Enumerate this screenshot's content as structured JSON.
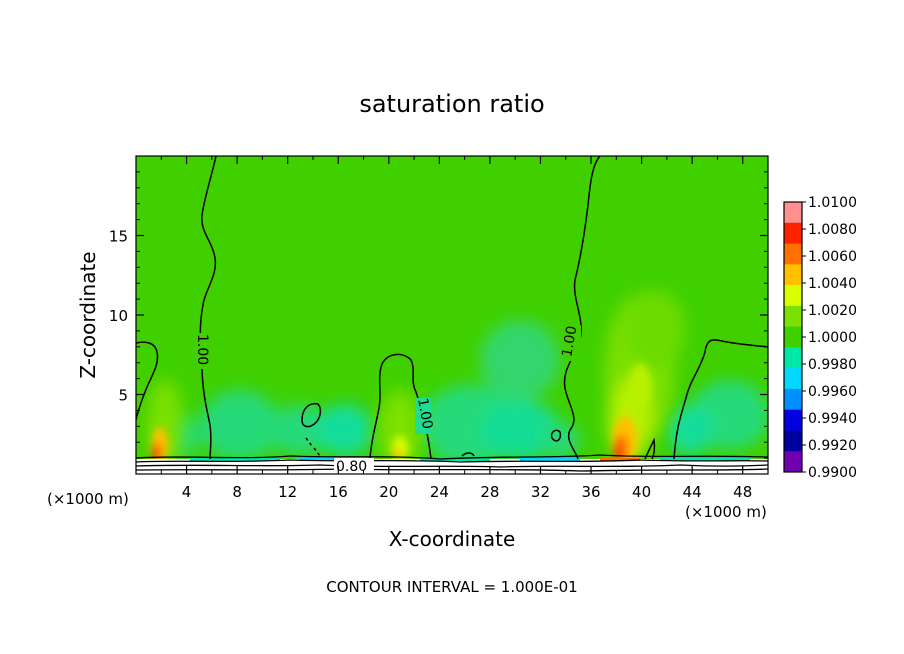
{
  "chart_data": {
    "type": "heatmap",
    "title": "saturation ratio",
    "xlabel": "X-coordinate",
    "ylabel": "Z-coordinate",
    "x_unit": "(×1000 m)",
    "x_unit_right": "(×1000 m)",
    "xlim": [
      0,
      50
    ],
    "ylim": [
      0,
      20
    ],
    "x_ticks": [
      4,
      8,
      12,
      16,
      20,
      24,
      28,
      32,
      36,
      40,
      44,
      48
    ],
    "x_tick_labels": [
      "4",
      "8",
      "12",
      "16",
      "20",
      "24",
      "28",
      "32",
      "36",
      "40",
      "44",
      "48"
    ],
    "y_ticks": [
      5,
      10,
      15
    ],
    "y_tick_labels": [
      "5",
      "10",
      "15"
    ],
    "colorbar": {
      "levels": [
        1.01,
        1.008,
        1.006,
        1.004,
        1.002,
        1.0,
        0.998,
        0.996,
        0.994,
        0.992,
        0.99
      ],
      "labels": [
        "1.0100",
        "1.0080",
        "1.0060",
        "1.0040",
        "1.0020",
        "1.0000",
        "0.9980",
        "0.9960",
        "0.9940",
        "0.9920",
        "0.9900"
      ],
      "colors": [
        "#ff9090",
        "#ff2000",
        "#ff7000",
        "#ffc000",
        "#d8ff00",
        "#7ce000",
        "#40d000",
        "#00e8a8",
        "#00d8ff",
        "#0090ff",
        "#0000e0",
        "#0000a0",
        "#7000b0"
      ]
    },
    "contour_labels": [
      {
        "text": "1.00",
        "x": 5.2,
        "y": 9.6
      },
      {
        "text": "1.00",
        "x": 22.8,
        "y": 3.1
      },
      {
        "text": "1.00",
        "x": 34.5,
        "y": 9.2
      },
      {
        "text": "0.80",
        "x": 17.3,
        "y": 0.45
      }
    ],
    "dominant_value": 1.0,
    "maxima": [
      {
        "x": 2.0,
        "z": 1.0,
        "value": 1.008
      },
      {
        "x": 20.8,
        "z": 1.0,
        "value": 1.004
      },
      {
        "x": 38.5,
        "z": 1.5,
        "value": 1.008
      }
    ],
    "footer": "CONTOUR INTERVAL = 1.000E-01"
  }
}
